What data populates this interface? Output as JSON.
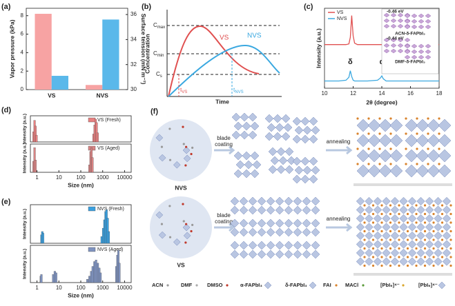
{
  "chart_data": [
    {
      "type": "bar",
      "panel": "(a)",
      "categories": [
        "VS",
        "NVS"
      ],
      "ylabel": "Vapor pressure (kPa)",
      "y2label": "Surface tension (mN m⁻¹)",
      "ylim": [
        0,
        8.8
      ],
      "yticks": [
        0,
        2,
        4,
        6,
        8
      ],
      "y2lim": [
        30,
        36.5
      ],
      "y2ticks": [
        30,
        32,
        34,
        36
      ],
      "series": [
        {
          "name": "Vapor pressure",
          "color": "#f7a3a3",
          "values": [
            8.2,
            0.5
          ]
        },
        {
          "name": "Surface tension",
          "color": "#5ab8ea",
          "values": [
            31.1,
            35.6
          ],
          "axis": "y2"
        }
      ]
    },
    {
      "type": "line",
      "panel": "(c)",
      "xlabel": "2θ (degree)",
      "ylabel": "Intensity (a.u.)",
      "xlim": [
        10,
        18
      ],
      "xticks": [
        10,
        12,
        14,
        16,
        18
      ],
      "ylim": [
        0,
        1.1
      ],
      "legend": "top-left",
      "x": [
        10,
        11,
        11.5,
        11.7,
        11.8,
        11.9,
        12,
        12.1,
        12.3,
        13,
        13.7,
        13.9,
        14,
        14.1,
        14.3,
        15,
        16,
        17,
        18
      ],
      "series": [
        {
          "name": "VS",
          "color": "#e05050",
          "values": [
            0.6,
            0.6,
            0.6,
            0.61,
            0.7,
            1.0,
            0.72,
            0.62,
            0.6,
            0.6,
            0.6,
            0.6,
            0.6,
            0.6,
            0.6,
            0.6,
            0.6,
            0.6,
            0.6
          ]
        },
        {
          "name": "NVS",
          "color": "#3aa8e0",
          "values": [
            0.1,
            0.1,
            0.11,
            0.15,
            0.24,
            0.16,
            0.11,
            0.1,
            0.1,
            0.1,
            0.11,
            0.14,
            0.17,
            0.13,
            0.1,
            0.1,
            0.1,
            0.1,
            0.1
          ]
        }
      ],
      "annotations": [
        {
          "text": "δ",
          "x": 11.8
        },
        {
          "text": "α",
          "x": 14
        }
      ],
      "inset": [
        "-0.46 eV",
        "ACN-δ-FAPbI₃",
        "-0.44 eV",
        "DMF-δ-FAPbI₃"
      ]
    },
    {
      "type": "bar",
      "panel": "(d)",
      "log_x": true,
      "ylabel": "Intensity (a.u.)",
      "xlim": [
        0.5,
        20000
      ],
      "ylim": [
        0,
        1.15
      ],
      "legend": "top-right",
      "x": [
        0.7,
        0.78,
        0.86,
        0.95,
        380,
        430,
        480,
        530,
        590
      ],
      "series": [
        {
          "name": "VS (Fresh)",
          "color": "#e88080",
          "values": [
            0.45,
            0.95,
            0.7,
            0.3,
            0.35,
            0.75,
            1.0,
            0.85,
            0.4
          ]
        }
      ]
    },
    {
      "type": "bar",
      "log_x": true,
      "ylabel": "Intensity (a.u.)",
      "xlabel": "Size (nm)",
      "xlim": [
        0.5,
        20000
      ],
      "ylim": [
        0,
        1.15
      ],
      "legend": "top-right",
      "xticks": [
        1,
        10,
        100,
        1000,
        10000
      ],
      "x": [
        0.7,
        0.78,
        0.86,
        250,
        280,
        310,
        340
      ],
      "series": [
        {
          "name": "VS (Aged)",
          "color": "#d98484",
          "values": [
            0.45,
            1.0,
            0.5,
            0.3,
            0.85,
            1.0,
            0.6
          ]
        }
      ]
    },
    {
      "type": "bar",
      "panel": "(e)",
      "log_x": true,
      "ylabel": "Intensity (a.u.)",
      "xlim": [
        0.5,
        20000
      ],
      "ylim": [
        0,
        1.15
      ],
      "legend": "top-right",
      "x": [
        1.6,
        1.75,
        1.9,
        900,
        1050,
        1200,
        1350,
        1500,
        1700,
        1900
      ],
      "series": [
        {
          "name": "NVS (Fresh)",
          "color": "#3aa0e0",
          "values": [
            0.25,
            0.35,
            0.3,
            0.2,
            0.45,
            0.7,
            0.95,
            1.0,
            0.75,
            0.35
          ]
        }
      ]
    },
    {
      "type": "bar",
      "log_x": true,
      "ylabel": "Intensity (a.u.)",
      "xlabel": "Size (nm)",
      "xlim": [
        0.5,
        20000
      ],
      "ylim": [
        0,
        1.15
      ],
      "legend": "top-right",
      "xticks": [
        1,
        10,
        100,
        1000,
        10000
      ],
      "x": [
        1.5,
        1.6,
        5.5,
        6.5,
        7.5,
        200,
        250,
        300,
        350,
        420,
        500,
        600,
        700,
        800,
        4200,
        4700,
        5200,
        5800
      ],
      "series": [
        {
          "name": "NVS (Aged)",
          "color": "#7f93c0",
          "values": [
            0.2,
            0.25,
            0.25,
            0.35,
            0.3,
            0.1,
            0.2,
            0.35,
            0.5,
            0.65,
            0.7,
            0.6,
            0.45,
            0.3,
            0.5,
            0.85,
            1.0,
            0.6
          ]
        }
      ]
    }
  ],
  "schematic": {
    "panel": "(b)",
    "ylabel": "Concentration",
    "xlabel": "Time",
    "levels": [
      {
        "symbol": "C",
        "sub": "max"
      },
      {
        "symbol": "C",
        "sub": "min"
      },
      {
        "symbol": "C",
        "sub": "s"
      }
    ],
    "curves": [
      "VS",
      "NVS"
    ],
    "times": [
      {
        "symbol": "t",
        "sub": "VS"
      },
      {
        "symbol": "t",
        "sub": "NVS"
      }
    ]
  },
  "diagram": {
    "panel": "(f)",
    "rows": [
      "NVS",
      "VS"
    ],
    "step1": [
      "blade",
      "coating"
    ],
    "step2": "annealing",
    "legend": [
      "ACN",
      "DMF",
      "DMSO",
      "α-FAPbI₃",
      "δ-FAPbI₃",
      "FAI",
      "MACl",
      "[PbI₆]⁴⁻",
      "[PbI₆]⁴⁻"
    ]
  }
}
